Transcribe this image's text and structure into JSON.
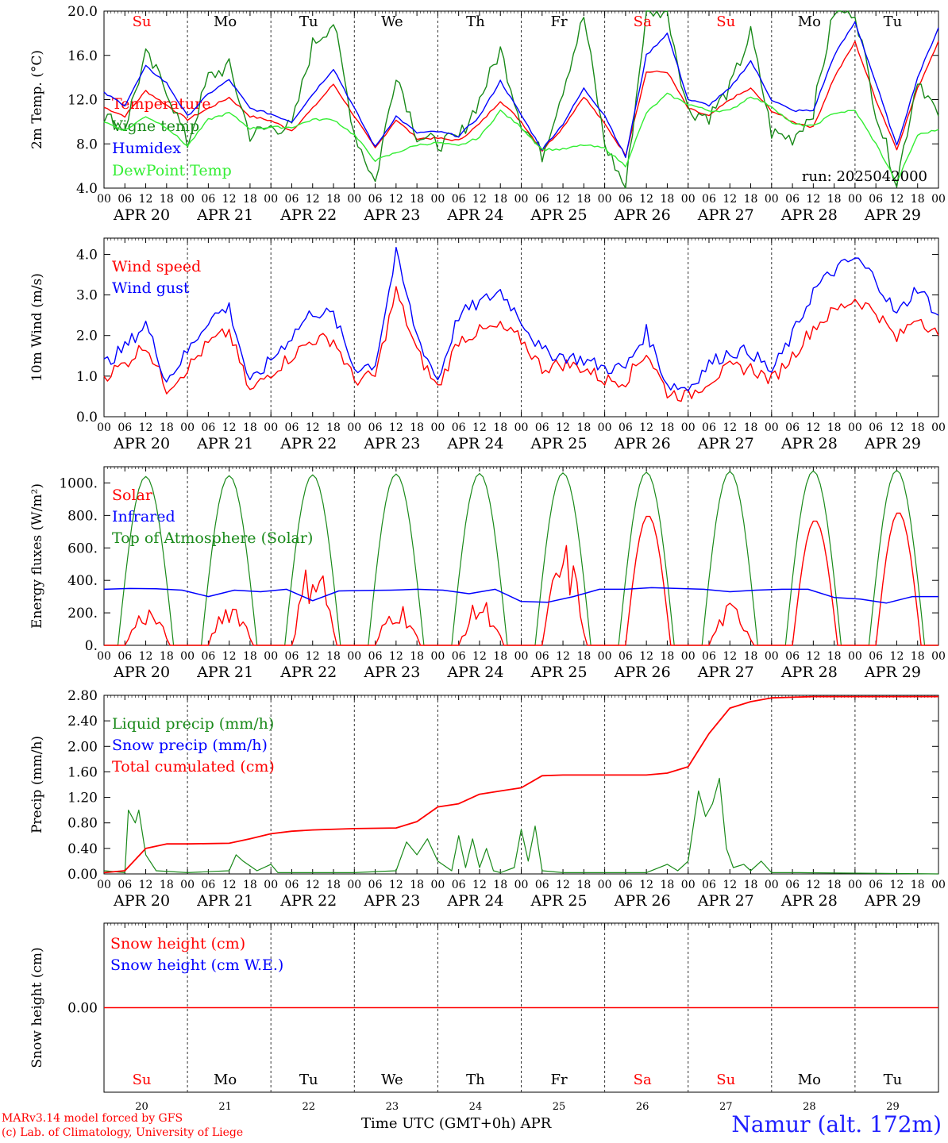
{
  "colors": {
    "red": "#ff0000",
    "blue": "#0000ff",
    "green": "#1a8a1a",
    "lightgreen": "#33ee33",
    "grid": "#444444"
  },
  "footer": {
    "credit1": "MARv3.14 model forced by GFS",
    "credit2": "(c) Lab. of Climatology, University of Liege",
    "xaxis": "Time UTC (GMT+0h) APR",
    "station": "Namur (alt. 172m)"
  },
  "chart_data": [
    {
      "type": "line",
      "ylabel": "2m Temp. (°C)",
      "ylim": [
        4,
        20
      ],
      "yticks": [
        "4.0",
        "8.0",
        "12.0",
        "16.0",
        "20.0"
      ],
      "annotation": "run: 2025042000",
      "x_hours": [
        0,
        6,
        12,
        18,
        24,
        30,
        36,
        42,
        48,
        54,
        60,
        66,
        72,
        78,
        84,
        90,
        96,
        102,
        108,
        114,
        120,
        126,
        132,
        138,
        144,
        150,
        156,
        162,
        168,
        174,
        180,
        186,
        192,
        198,
        204,
        210,
        216,
        222,
        228,
        234,
        240
      ],
      "series": [
        {
          "name": "Temperature",
          "color": "#ff0000",
          "values": [
            11.3,
            10.5,
            12.8,
            11.5,
            10.2,
            11.2,
            12.2,
            10.5,
            10.1,
            9.2,
            11.2,
            13.4,
            10.5,
            7.6,
            10.2,
            8.5,
            8.5,
            8.3,
            9.8,
            11.9,
            10,
            7.4,
            9.5,
            12.3,
            9.8,
            7,
            14.5,
            14.5,
            11.2,
            10.5,
            12,
            13,
            11,
            10,
            9.5,
            14,
            17.2,
            12,
            7.5,
            13,
            17.3
          ]
        },
        {
          "name": "Vigne temp",
          "color": "#1a8a1a",
          "values": [
            10.5,
            9.5,
            16,
            13,
            8,
            14,
            15,
            8.8,
            9.5,
            9.5,
            17,
            19,
            9,
            4.5,
            14.5,
            8.8,
            8,
            8.5,
            12,
            16.5,
            10,
            7,
            13,
            19.5,
            8,
            4,
            20,
            20,
            11,
            10.5,
            13,
            18,
            9,
            8.5,
            11,
            20,
            20,
            11,
            4.5,
            14,
            10.5
          ]
        },
        {
          "name": "Humidex",
          "color": "#0000ff",
          "values": [
            12.6,
            11.5,
            15,
            13.5,
            10.5,
            12.5,
            13.8,
            11.2,
            10.7,
            10,
            12.5,
            14.8,
            11.2,
            7.7,
            10.5,
            9,
            9.1,
            8.7,
            10.5,
            13.7,
            10.6,
            7.5,
            9.8,
            13,
            10.6,
            6.8,
            16,
            18,
            12,
            11.5,
            13,
            15.5,
            12,
            11,
            11,
            16,
            19,
            13.5,
            7.8,
            14,
            18.5
          ]
        },
        {
          "name": "DewPoint Temp",
          "color": "#33ee33",
          "values": [
            10,
            9.2,
            10.5,
            9.5,
            7.8,
            10.2,
            10.8,
            9.4,
            9.5,
            9.5,
            10.2,
            10.2,
            8.8,
            6.5,
            7.2,
            7.9,
            8.1,
            7.8,
            8.6,
            11,
            9.5,
            7.5,
            7.5,
            7.9,
            7.6,
            6,
            10.8,
            12.5,
            11.6,
            11,
            11,
            12.3,
            11.4,
            9.8,
            9.6,
            10.8,
            11,
            8,
            4.5,
            8.8,
            9.3
          ]
        }
      ]
    },
    {
      "type": "line",
      "ylabel": "10m Wind (m/s)",
      "ylim": [
        0,
        4.4
      ],
      "yticks": [
        "0.0",
        "1.0",
        "2.0",
        "3.0",
        "4.0"
      ],
      "x_hours": [
        0,
        6,
        12,
        18,
        24,
        30,
        36,
        42,
        48,
        54,
        60,
        66,
        72,
        78,
        84,
        90,
        96,
        102,
        108,
        114,
        120,
        126,
        132,
        138,
        144,
        150,
        156,
        162,
        168,
        174,
        180,
        186,
        192,
        198,
        204,
        210,
        216,
        222,
        228,
        234,
        240
      ],
      "series": [
        {
          "name": "Wind speed",
          "color": "#ff0000",
          "values": [
            1,
            1.3,
            1.8,
            0.7,
            1.2,
            1.8,
            2.1,
            0.6,
            1.1,
            1.5,
            1.9,
            1.9,
            0.9,
            1.0,
            3.1,
            1.6,
            0.7,
            1.9,
            2.1,
            2.2,
            1.9,
            1.2,
            1.3,
            1.2,
            0.9,
            0.9,
            1.6,
            0.6,
            0.5,
            0.9,
            1.2,
            1.2,
            0.9,
            1.5,
            2.2,
            2.6,
            2.9,
            2.6,
            1.9,
            2.5,
            2.0
          ]
        },
        {
          "name": "Wind gust",
          "color": "#0000ff",
          "values": [
            1.3,
            1.7,
            2.3,
            0.9,
            1.6,
            2.4,
            2.7,
            0.8,
            1.4,
            2.0,
            2.6,
            2.5,
            1.2,
            1.3,
            4.0,
            2.0,
            0.9,
            2.5,
            2.8,
            3.1,
            2.4,
            1.6,
            1.5,
            1.4,
            1.2,
            1.2,
            2.1,
            0.8,
            0.7,
            1.3,
            1.6,
            1.6,
            1.1,
            2.0,
            3.1,
            3.6,
            3.9,
            3.4,
            2.5,
            3.2,
            2.5
          ]
        }
      ]
    },
    {
      "type": "line",
      "ylabel": "Energy fluxes (W/m²)",
      "ylim": [
        0,
        1100
      ],
      "yticks": [
        "0.",
        "200.",
        "400.",
        "600.",
        "800.",
        "1000."
      ],
      "series": [
        {
          "name": "Solar",
          "color": "#ff0000",
          "daily_peaks": [
            250,
            300,
            590,
            280,
            300,
            640,
            800,
            270,
            770,
            820
          ]
        },
        {
          "name": "Infrared",
          "color": "#0000ff",
          "values": [
            345,
            350,
            348,
            340,
            300,
            340,
            330,
            345,
            275,
            335,
            338,
            340,
            345,
            340,
            318,
            345,
            270,
            265,
            300,
            345,
            345,
            355,
            350,
            345,
            330,
            340,
            345,
            345,
            295,
            285,
            260,
            300,
            300
          ]
        },
        {
          "name": "Top of Atmosphere (Solar)",
          "color": "#1a8a1a",
          "daily_peaks": [
            1040,
            1045,
            1050,
            1055,
            1058,
            1062,
            1066,
            1070,
            1074,
            1078
          ]
        }
      ]
    },
    {
      "type": "line",
      "ylabel": "Precip (mm/h)",
      "ylim": [
        0,
        2.8
      ],
      "yticks": [
        "0.00",
        "0.40",
        "0.80",
        "1.20",
        "1.60",
        "2.00",
        "2.40",
        "2.80"
      ],
      "series": [
        {
          "name": "Liquid precip (mm/h)",
          "color": "#1a8a1a",
          "points": [
            [
              0,
              0.05
            ],
            [
              6,
              0.02
            ],
            [
              7,
              1.0
            ],
            [
              9,
              0.8
            ],
            [
              10,
              1.0
            ],
            [
              12,
              0.3
            ],
            [
              15,
              0.05
            ],
            [
              24,
              0.02
            ],
            [
              36,
              0.05
            ],
            [
              38,
              0.3
            ],
            [
              40,
              0.2
            ],
            [
              44,
              0.05
            ],
            [
              48,
              0.15
            ],
            [
              50,
              0.02
            ],
            [
              60,
              0.02
            ],
            [
              72,
              0.02
            ],
            [
              84,
              0.05
            ],
            [
              87,
              0.5
            ],
            [
              90,
              0.3
            ],
            [
              93,
              0.55
            ],
            [
              96,
              0.2
            ],
            [
              100,
              0.05
            ],
            [
              102,
              0.6
            ],
            [
              104,
              0.1
            ],
            [
              106,
              0.55
            ],
            [
              108,
              0.1
            ],
            [
              110,
              0.4
            ],
            [
              112,
              0.05
            ],
            [
              114,
              0.02
            ],
            [
              118,
              0.1
            ],
            [
              120,
              0.7
            ],
            [
              122,
              0.2
            ],
            [
              124,
              0.75
            ],
            [
              126,
              0.05
            ],
            [
              132,
              0.02
            ],
            [
              156,
              0.02
            ],
            [
              162,
              0.15
            ],
            [
              165,
              0.05
            ],
            [
              168,
              0.2
            ],
            [
              171,
              1.3
            ],
            [
              173,
              0.9
            ],
            [
              175,
              1.1
            ],
            [
              177,
              1.5
            ],
            [
              179,
              0.4
            ],
            [
              181,
              0.1
            ],
            [
              184,
              0.15
            ],
            [
              186,
              0.05
            ],
            [
              189,
              0.2
            ],
            [
              192,
              0.02
            ],
            [
              200,
              0.02
            ],
            [
              240,
              0.0
            ]
          ]
        },
        {
          "name": "Snow precip (mm/h)",
          "color": "#0000ff",
          "values": []
        },
        {
          "name": "Total cumulated (cm)",
          "color": "#ff0000",
          "points": [
            [
              0,
              0.02
            ],
            [
              6,
              0.05
            ],
            [
              12,
              0.4
            ],
            [
              18,
              0.47
            ],
            [
              24,
              0.47
            ],
            [
              36,
              0.48
            ],
            [
              42,
              0.55
            ],
            [
              48,
              0.63
            ],
            [
              54,
              0.67
            ],
            [
              60,
              0.69
            ],
            [
              72,
              0.71
            ],
            [
              84,
              0.72
            ],
            [
              90,
              0.82
            ],
            [
              96,
              1.05
            ],
            [
              102,
              1.1
            ],
            [
              108,
              1.25
            ],
            [
              114,
              1.3
            ],
            [
              120,
              1.35
            ],
            [
              126,
              1.54
            ],
            [
              132,
              1.55
            ],
            [
              138,
              1.55
            ],
            [
              144,
              1.55
            ],
            [
              156,
              1.55
            ],
            [
              162,
              1.58
            ],
            [
              168,
              1.68
            ],
            [
              174,
              2.2
            ],
            [
              180,
              2.6
            ],
            [
              186,
              2.7
            ],
            [
              192,
              2.76
            ],
            [
              198,
              2.77
            ],
            [
              204,
              2.78
            ],
            [
              240,
              2.78
            ]
          ]
        }
      ]
    },
    {
      "type": "line",
      "ylabel": "Snow height (cm)",
      "ylim": [
        -1,
        1
      ],
      "yticks": [
        "0.00"
      ],
      "series": [
        {
          "name": "Snow height (cm)",
          "color": "#ff0000",
          "values": [
            0,
            0
          ]
        },
        {
          "name": "Snow height (cm W.E.)",
          "color": "#0000ff",
          "values": []
        }
      ]
    }
  ],
  "x_axis": {
    "hour_labels": [
      "00",
      "06",
      "12",
      "18"
    ],
    "final_label": "00",
    "dates": [
      "APR 20",
      "APR 21",
      "APR 22",
      "APR 23",
      "APR 24",
      "APR 25",
      "APR 26",
      "APR 27",
      "APR 28",
      "APR 29"
    ],
    "weekdays": [
      "Su",
      "Mo",
      "Tu",
      "We",
      "Th",
      "Fr",
      "Sa",
      "Su",
      "Mo",
      "Tu"
    ],
    "weekday_colors": [
      "#ff0000",
      "#000000",
      "#000000",
      "#000000",
      "#000000",
      "#000000",
      "#ff0000",
      "#ff0000",
      "#000000",
      "#000000"
    ],
    "day_numbers": [
      "20",
      "21",
      "22",
      "23",
      "24",
      "25",
      "26",
      "27",
      "28",
      "29"
    ]
  }
}
